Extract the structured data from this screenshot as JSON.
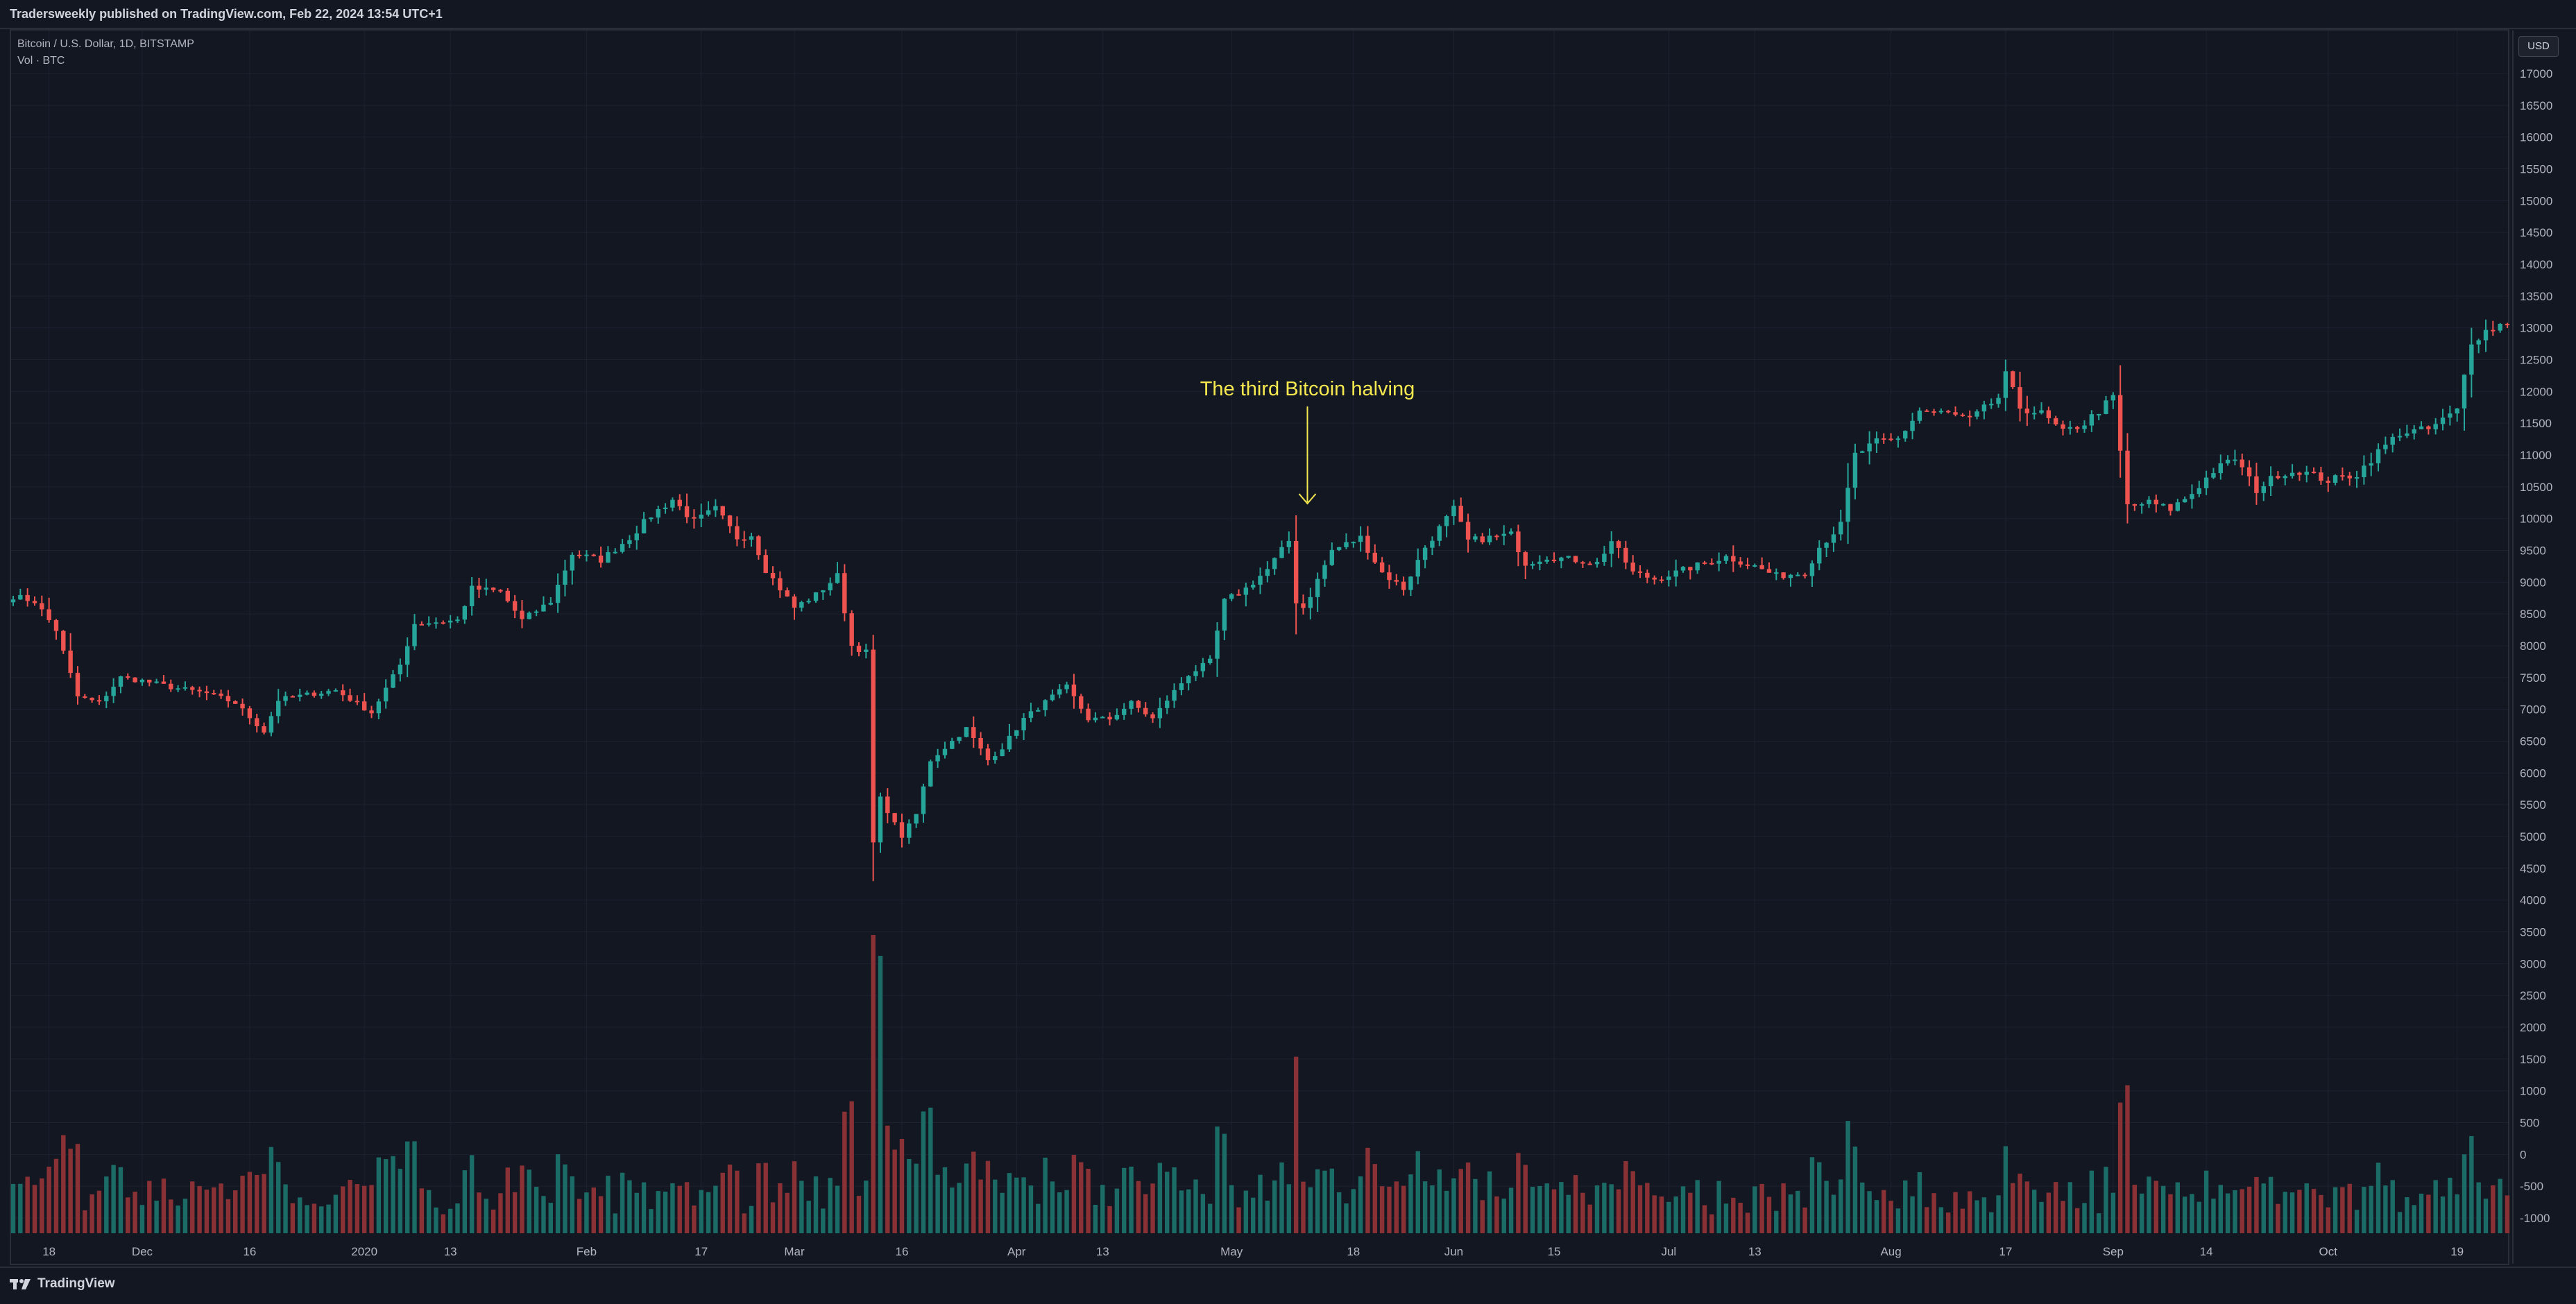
{
  "header": {
    "publish_text": "Tradersweekly published on TradingView.com, Feb 22, 2024 13:54 UTC+1"
  },
  "legend": {
    "symbol_line": "Bitcoin / U.S. Dollar, 1D, BITSTAMP",
    "volume_line": "Vol · BTC"
  },
  "price_scale": {
    "currency": "USD"
  },
  "footer": {
    "brand": "TradingView"
  },
  "colors": {
    "up": "#26a69a",
    "down": "#ef5350",
    "volume_up": "#1b6b66",
    "volume_down": "#8a3135",
    "annotation": "#f5e94f",
    "background": "#131722",
    "grid": "#1e2230"
  },
  "chart_data": {
    "type": "candlestick",
    "title": "Bitcoin / U.S. Dollar, 1D, BITSTAMP",
    "ylabel": "USD",
    "ylim": [
      -1000,
      17000
    ],
    "y_ticks": [
      17000,
      16500,
      16000,
      15500,
      15000,
      14500,
      14000,
      13500,
      13000,
      12500,
      12000,
      11500,
      11000,
      10500,
      10000,
      9500,
      9000,
      8500,
      8000,
      7500,
      7000,
      6500,
      6000,
      5500,
      5000,
      4500,
      4000,
      3500,
      3000,
      2500,
      2000,
      1500,
      1000,
      500,
      0,
      -500,
      -1000
    ],
    "x_ticks": [
      "18",
      "Dec",
      "16",
      "2020",
      "13",
      "Feb",
      "17",
      "Mar",
      "16",
      "Apr",
      "13",
      "May",
      "18",
      "Jun",
      "15",
      "Jul",
      "13",
      "Aug",
      "17",
      "Sep",
      "14",
      "Oct",
      "19"
    ],
    "x_tick_dates": [
      "2019-11-18",
      "2019-12-01",
      "2019-12-16",
      "2020-01-01",
      "2020-01-13",
      "2020-02-01",
      "2020-02-17",
      "2020-03-01",
      "2020-03-16",
      "2020-04-01",
      "2020-04-13",
      "2020-05-01",
      "2020-05-18",
      "2020-06-01",
      "2020-06-15",
      "2020-07-01",
      "2020-07-13",
      "2020-08-01",
      "2020-08-17",
      "2020-09-01",
      "2020-09-14",
      "2020-10-01",
      "2020-10-19"
    ],
    "x_range": [
      "2019-11-13",
      "2020-10-26"
    ],
    "price_anchors": [
      [
        "2019-11-13",
        8780
      ],
      [
        "2019-11-16",
        8700
      ],
      [
        "2019-11-19",
        8250
      ],
      [
        "2019-11-22",
        7200
      ],
      [
        "2019-11-25",
        7100
      ],
      [
        "2019-11-28",
        7500
      ],
      [
        "2019-12-01",
        7450
      ],
      [
        "2019-12-05",
        7350
      ],
      [
        "2019-12-10",
        7250
      ],
      [
        "2019-12-14",
        7100
      ],
      [
        "2019-12-18",
        6650
      ],
      [
        "2019-12-20",
        7150
      ],
      [
        "2019-12-25",
        7250
      ],
      [
        "2019-12-28",
        7300
      ],
      [
        "2020-01-02",
        6950
      ],
      [
        "2020-01-06",
        7700
      ],
      [
        "2020-01-08",
        8350
      ],
      [
        "2020-01-14",
        8400
      ],
      [
        "2020-01-16",
        8900
      ],
      [
        "2020-01-20",
        8850
      ],
      [
        "2020-01-23",
        8400
      ],
      [
        "2020-01-27",
        8700
      ],
      [
        "2020-01-30",
        9450
      ],
      [
        "2020-02-03",
        9350
      ],
      [
        "2020-02-07",
        9700
      ],
      [
        "2020-02-10",
        10050
      ],
      [
        "2020-02-13",
        10300
      ],
      [
        "2020-02-16",
        9950
      ],
      [
        "2020-02-19",
        10150
      ],
      [
        "2020-02-22",
        9700
      ],
      [
        "2020-02-24",
        9750
      ],
      [
        "2020-02-26",
        9200
      ],
      [
        "2020-03-01",
        8600
      ],
      [
        "2020-03-04",
        8800
      ],
      [
        "2020-03-07",
        9100
      ],
      [
        "2020-03-09",
        8000
      ],
      [
        "2020-03-11",
        7900
      ],
      [
        "2020-03-12",
        4900
      ],
      [
        "2020-03-13",
        5600
      ],
      [
        "2020-03-16",
        5000
      ],
      [
        "2020-03-18",
        5350
      ],
      [
        "2020-03-20",
        6200
      ],
      [
        "2020-03-23",
        6500
      ],
      [
        "2020-03-25",
        6700
      ],
      [
        "2020-03-28",
        6200
      ],
      [
        "2020-03-30",
        6400
      ],
      [
        "2020-04-02",
        6850
      ],
      [
        "2020-04-06",
        7200
      ],
      [
        "2020-04-08",
        7350
      ],
      [
        "2020-04-11",
        6850
      ],
      [
        "2020-04-14",
        6850
      ],
      [
        "2020-04-17",
        7100
      ],
      [
        "2020-04-20",
        6850
      ],
      [
        "2020-04-22",
        7150
      ],
      [
        "2020-04-25",
        7550
      ],
      [
        "2020-04-28",
        7750
      ],
      [
        "2020-04-30",
        8700
      ],
      [
        "2020-05-03",
        8900
      ],
      [
        "2020-05-06",
        9200
      ],
      [
        "2020-05-09",
        9650
      ],
      [
        "2020-05-10",
        8700
      ],
      [
        "2020-05-11",
        8600
      ],
      [
        "2020-05-12",
        8800
      ],
      [
        "2020-05-15",
        9500
      ],
      [
        "2020-05-19",
        9700
      ],
      [
        "2020-05-22",
        9150
      ],
      [
        "2020-05-25",
        8900
      ],
      [
        "2020-05-28",
        9550
      ],
      [
        "2020-06-01",
        10150
      ],
      [
        "2020-06-03",
        9650
      ],
      [
        "2020-06-06",
        9700
      ],
      [
        "2020-06-09",
        9750
      ],
      [
        "2020-06-11",
        9300
      ],
      [
        "2020-06-14",
        9400
      ],
      [
        "2020-06-18",
        9350
      ],
      [
        "2020-06-21",
        9300
      ],
      [
        "2020-06-23",
        9650
      ],
      [
        "2020-06-26",
        9150
      ],
      [
        "2020-06-29",
        9050
      ],
      [
        "2020-07-02",
        9150
      ],
      [
        "2020-07-06",
        9300
      ],
      [
        "2020-07-09",
        9400
      ],
      [
        "2020-07-13",
        9250
      ],
      [
        "2020-07-16",
        9100
      ],
      [
        "2020-07-20",
        9150
      ],
      [
        "2020-07-22",
        9550
      ],
      [
        "2020-07-25",
        9900
      ],
      [
        "2020-07-27",
        11000
      ],
      [
        "2020-07-30",
        11200
      ],
      [
        "2020-08-02",
        11250
      ],
      [
        "2020-08-05",
        11700
      ],
      [
        "2020-08-09",
        11650
      ],
      [
        "2020-08-12",
        11550
      ],
      [
        "2020-08-16",
        11900
      ],
      [
        "2020-08-17",
        12250
      ],
      [
        "2020-08-19",
        11750
      ],
      [
        "2020-08-22",
        11650
      ],
      [
        "2020-08-25",
        11350
      ],
      [
        "2020-08-28",
        11500
      ],
      [
        "2020-09-01",
        11900
      ],
      [
        "2020-09-03",
        10200
      ],
      [
        "2020-09-06",
        10250
      ],
      [
        "2020-09-09",
        10150
      ],
      [
        "2020-09-12",
        10400
      ],
      [
        "2020-09-15",
        10750
      ],
      [
        "2020-09-18",
        10950
      ],
      [
        "2020-09-21",
        10450
      ],
      [
        "2020-09-24",
        10700
      ],
      [
        "2020-09-27",
        10750
      ],
      [
        "2020-10-01",
        10600
      ],
      [
        "2020-10-05",
        10700
      ],
      [
        "2020-10-08",
        11050
      ],
      [
        "2020-10-11",
        11350
      ],
      [
        "2020-10-15",
        11400
      ],
      [
        "2020-10-19",
        11700
      ],
      [
        "2020-10-21",
        12800
      ],
      [
        "2020-10-23",
        12950
      ],
      [
        "2020-10-26",
        13100
      ]
    ],
    "volume_overlay": "Vol · BTC (bars at bottom of price pane)",
    "annotations": [
      {
        "text": "The third Bitcoin halving",
        "date": "2020-05-11"
      }
    ]
  }
}
